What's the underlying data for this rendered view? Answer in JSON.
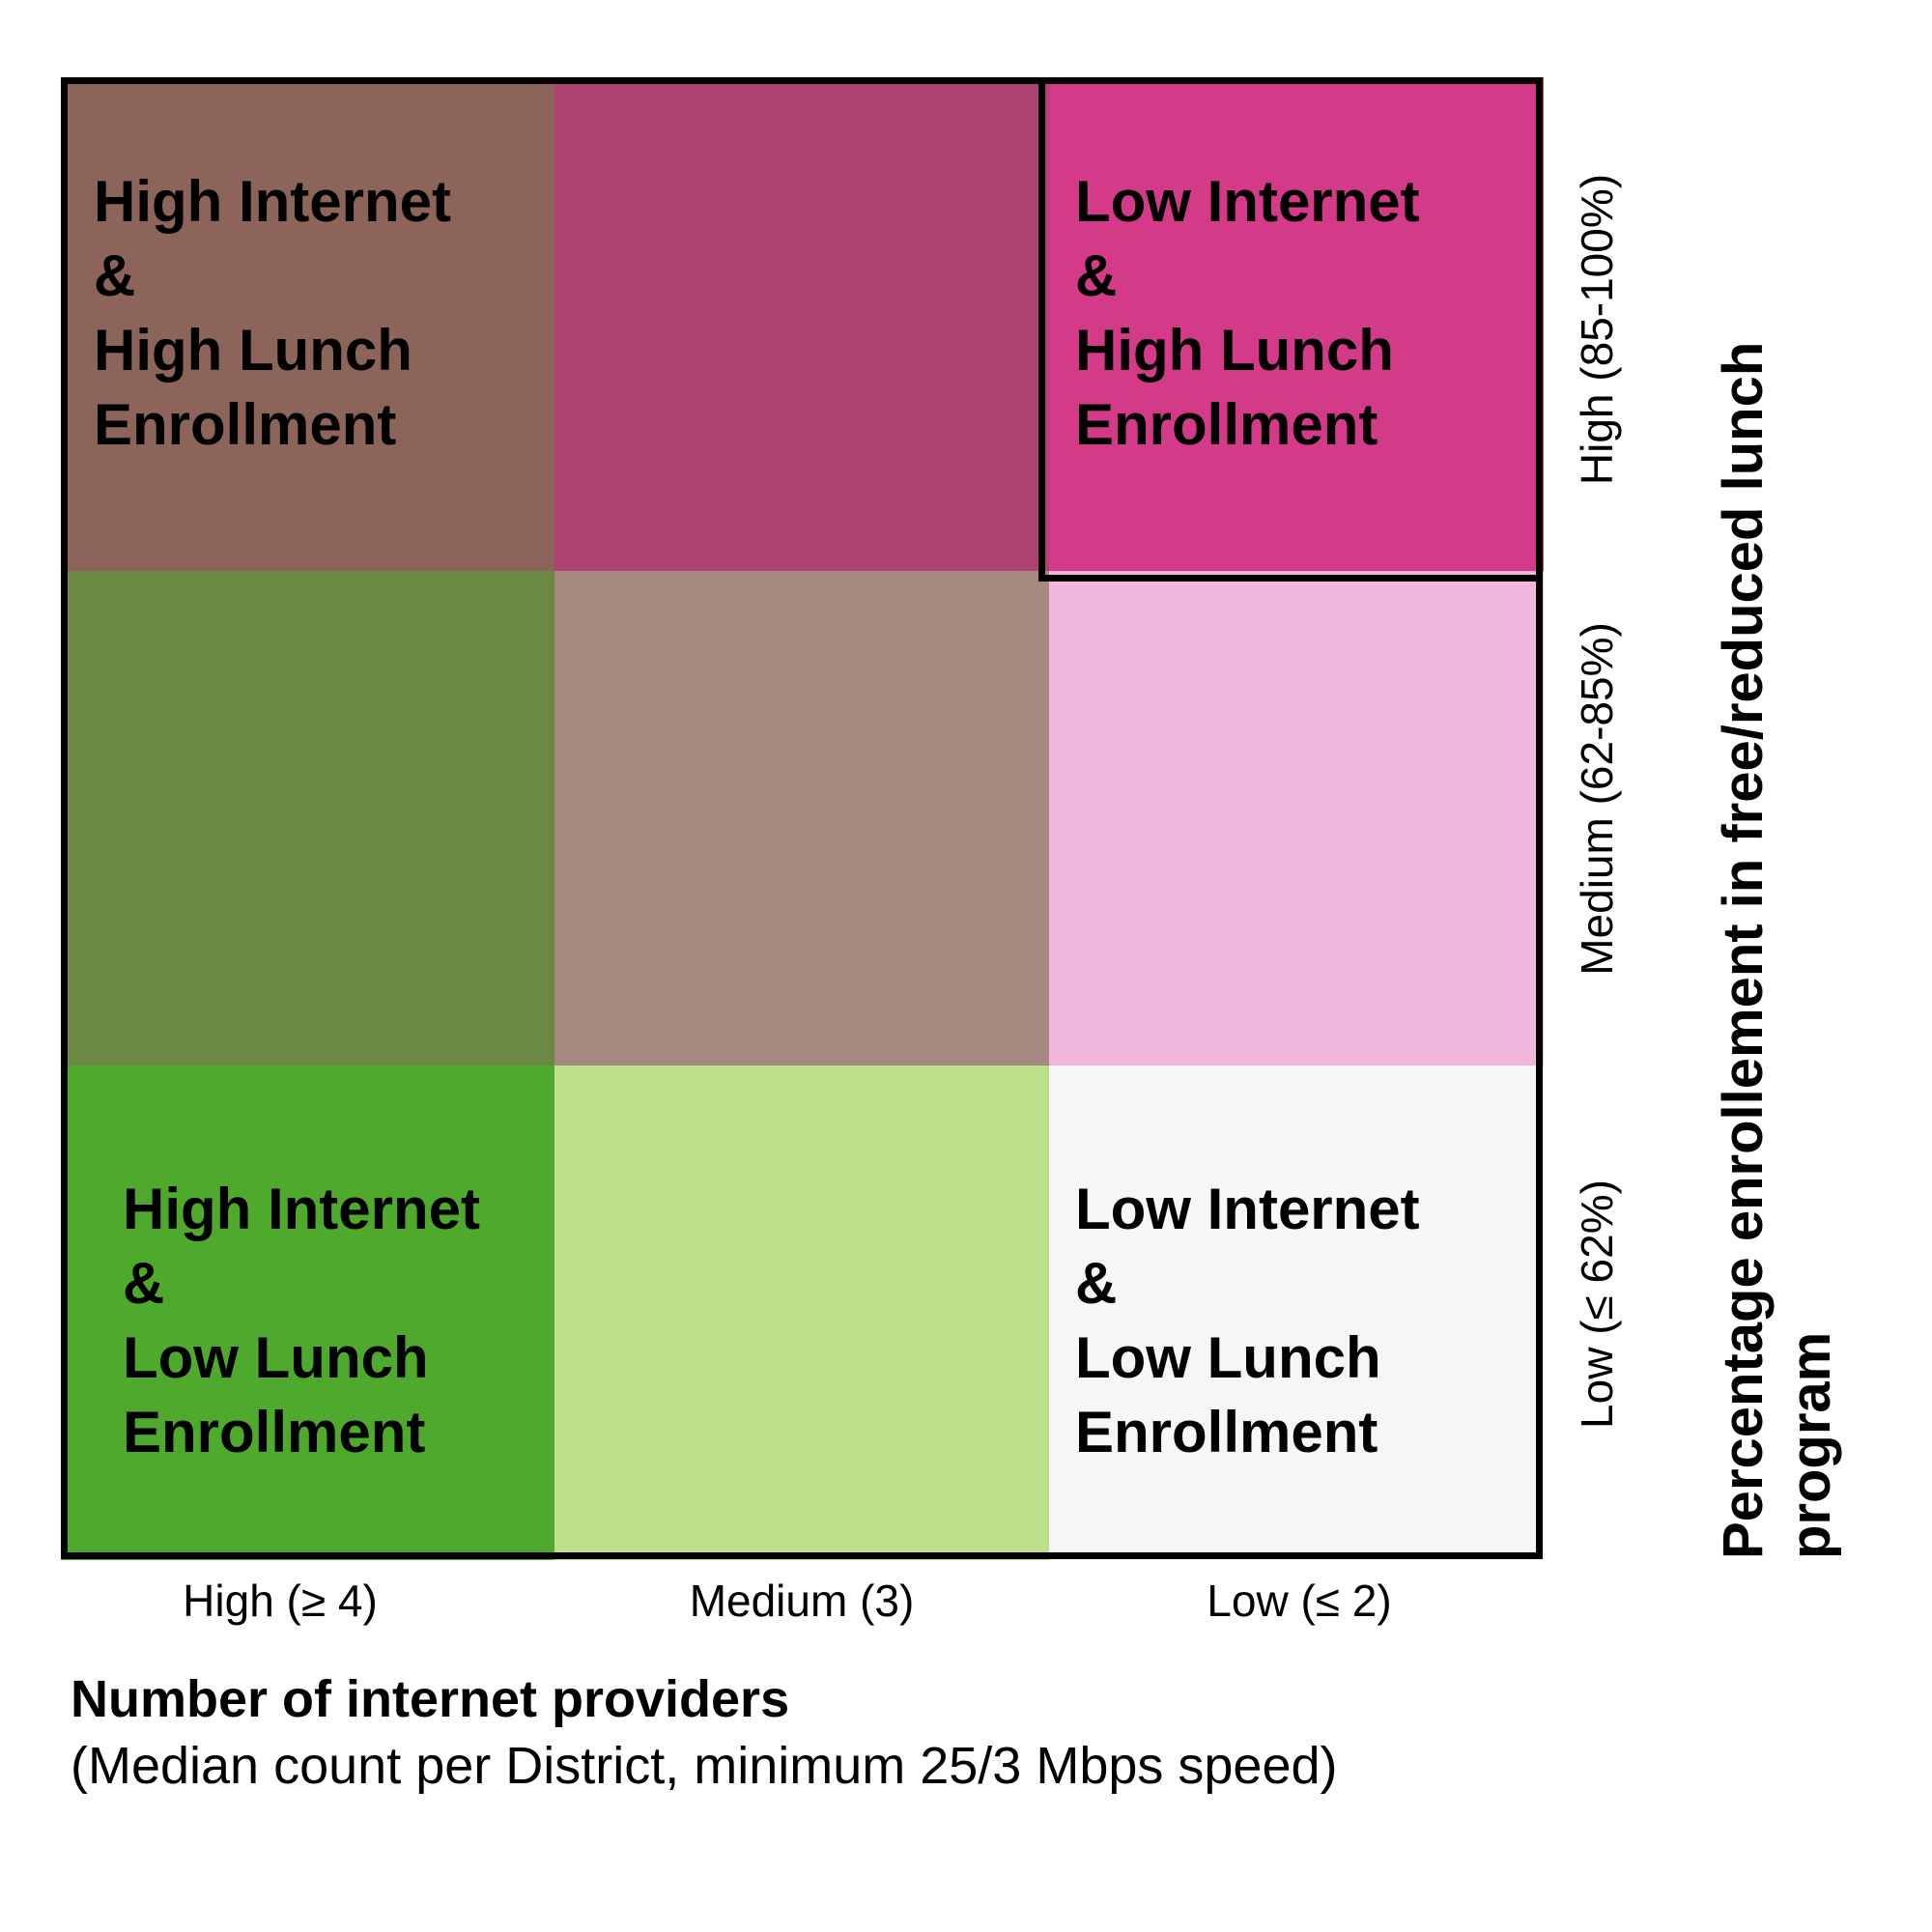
{
  "chart_data": {
    "type": "heatmap",
    "title": "",
    "x_axis": {
      "title": "Number of internet providers",
      "subtitle": "(Median count per District, minimum 25/3 Mbps speed)",
      "categories": [
        "High (≥ 4)",
        "Medium (3)",
        "Low (≤ 2)"
      ]
    },
    "y_axis": {
      "title": "Percentage enrollement in free/reduced lunch program",
      "categories": [
        "Low (≤ 62%)",
        "Medium (62-85%)",
        "High (85-100%)"
      ]
    },
    "cells": [
      {
        "x": "High (≥ 4)",
        "y": "High (85-100%)",
        "color": "#8c6459"
      },
      {
        "x": "Medium (3)",
        "y": "High (85-100%)",
        "color": "#ae4270"
      },
      {
        "x": "Low (≤ 2)",
        "y": "High (85-100%)",
        "color": "#d33b88"
      },
      {
        "x": "High (≥ 4)",
        "y": "Medium (62-85%)",
        "color": "#6b8845"
      },
      {
        "x": "Medium (3)",
        "y": "Medium (62-85%)",
        "color": "#a68980"
      },
      {
        "x": "Low (≤ 2)",
        "y": "Medium (62-85%)",
        "color": "#f0b6dc"
      },
      {
        "x": "High (≥ 4)",
        "y": "Low (≤ 62%)",
        "color": "#4fa92c"
      },
      {
        "x": "Medium (3)",
        "y": "Low (≤ 62%)",
        "color": "#bbe089"
      },
      {
        "x": "Low (≤ 2)",
        "y": "Low (≤ 62%)",
        "color": "#f6f6f6"
      }
    ],
    "highlighted_cell": {
      "x": "Low (≤ 2)",
      "y": "High (85-100%)"
    },
    "annotations": {
      "top_left": [
        "High Internet",
        "&",
        "High Lunch",
        "Enrollment"
      ],
      "top_right": [
        "Low Internet",
        "&",
        "High Lunch",
        "Enrollment"
      ],
      "bottom_left": [
        "High Internet",
        "&",
        "Low Lunch",
        "Enrollment"
      ],
      "bottom_right": [
        "Low Internet",
        "&",
        "Low Lunch",
        "Enrollment"
      ]
    }
  }
}
